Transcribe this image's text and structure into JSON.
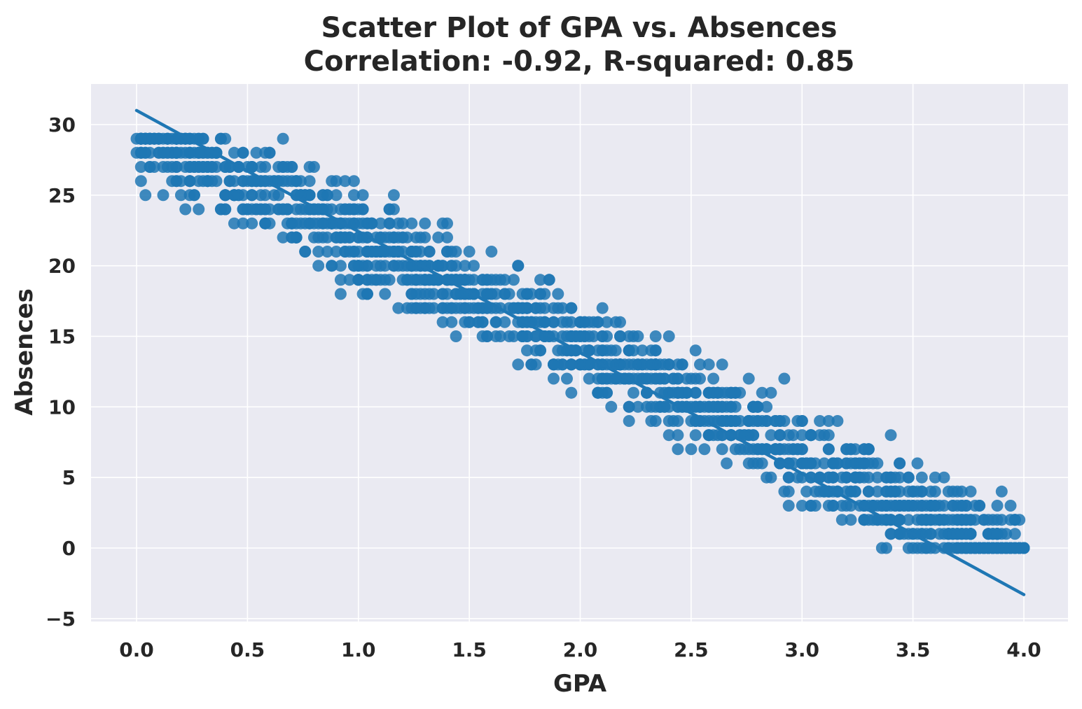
{
  "chart_data": {
    "type": "scatter",
    "title": "Scatter Plot of GPA vs. Absences",
    "subtitle": "Correlation: -0.92, R-squared: 0.85",
    "xlabel": "GPA",
    "ylabel": "Absences",
    "xlim": [
      -0.2,
      4.2
    ],
    "ylim": [
      -5.2,
      31.5
    ],
    "x_ticks": [
      0.0,
      0.5,
      1.0,
      1.5,
      2.0,
      2.5,
      3.0,
      3.5,
      4.0
    ],
    "x_tick_labels": [
      "0.0",
      "0.5",
      "1.0",
      "1.5",
      "2.0",
      "2.5",
      "3.0",
      "3.5",
      "4.0"
    ],
    "y_ticks": [
      -5,
      0,
      5,
      10,
      15,
      20,
      25,
      30
    ],
    "y_tick_labels": [
      "−5",
      "0",
      "5",
      "10",
      "15",
      "20",
      "25",
      "30"
    ],
    "grid": true,
    "point_color": "#1f77b4",
    "line_color": "#1f77b4",
    "background_color": "#eaeaf2",
    "regression_line": {
      "x": [
        0.0,
        4.0
      ],
      "y": [
        31.0,
        -3.3
      ]
    },
    "points_description": "dense band of integer-absence points from about 29 at GPA 0 falling to 0 at GPA 3-4"
  }
}
